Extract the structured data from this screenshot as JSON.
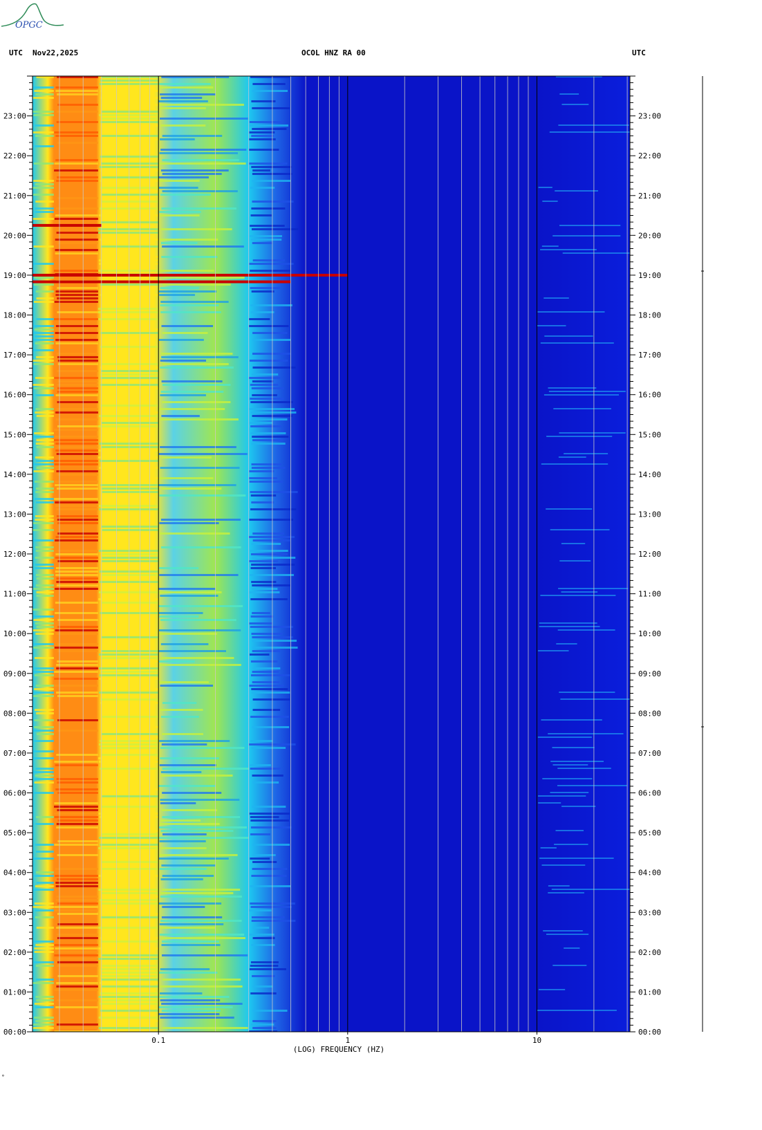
{
  "header": {
    "logo_text": "OPGC",
    "tz_left": "UTC",
    "date": "Nov22,2025",
    "station": "OCOL HNZ RA 00",
    "tz_right": "UTC"
  },
  "footer_mark": "°",
  "colors": {
    "low": "#0a14c8",
    "mid": "#1ec8f0",
    "high": "#ffe61e",
    "peak": "#c80000",
    "grid": "#c8c8c8"
  },
  "chart_data": {
    "type": "heatmap",
    "xlabel": "(LOG) FREQUENCY (HZ)",
    "x_scale": "log",
    "xlim": [
      0.0216,
      31.0
    ],
    "x_tick_labels": [
      {
        "value": 0.1,
        "label": "0.1"
      },
      {
        "value": 1,
        "label": "1"
      },
      {
        "value": 10,
        "label": "10"
      }
    ],
    "ylim_hours": [
      0,
      24
    ],
    "y_tick_labels": [
      "00:00",
      "01:00",
      "02:00",
      "03:00",
      "04:00",
      "05:00",
      "06:00",
      "07:00",
      "08:00",
      "09:00",
      "10:00",
      "11:00",
      "12:00",
      "13:00",
      "14:00",
      "15:00",
      "16:00",
      "17:00",
      "18:00",
      "19:00",
      "20:00",
      "21:00",
      "22:00",
      "23:00"
    ],
    "frequency_bands": [
      {
        "from": 0.0216,
        "to": 0.028,
        "level": "yellow-cyan"
      },
      {
        "from": 0.028,
        "to": 0.048,
        "level": "orange-red"
      },
      {
        "from": 0.048,
        "to": 0.1,
        "level": "yellow"
      },
      {
        "from": 0.1,
        "to": 0.3,
        "level": "cyan-yellow"
      },
      {
        "from": 0.3,
        "to": 0.5,
        "level": "cyan-blue"
      },
      {
        "from": 0.5,
        "to": 10,
        "level": "blue"
      },
      {
        "from": 10,
        "to": 31,
        "level": "blue with cyan bursts"
      }
    ],
    "events": [
      {
        "time": "19:00",
        "max_frequency": 1.0,
        "level": "red"
      },
      {
        "time": "18:50",
        "max_frequency": 0.5,
        "level": "red-yellow"
      },
      {
        "time": "20:15",
        "max_frequency": 0.05,
        "level": "red"
      }
    ]
  }
}
